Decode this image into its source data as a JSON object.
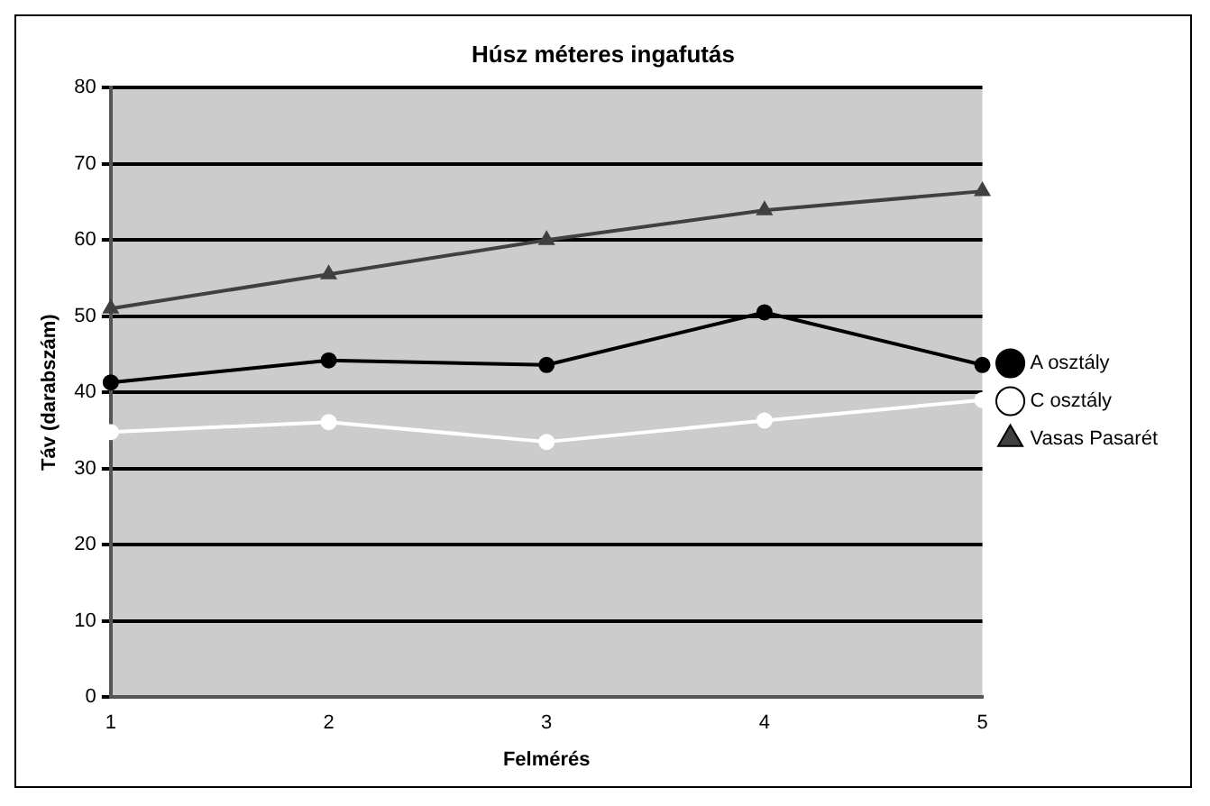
{
  "chart_data": {
    "type": "line",
    "title": "Húsz méteres ingafutás",
    "xlabel": "Felmérés",
    "ylabel": "Táv (darabszám)",
    "categories": [
      "1",
      "2",
      "3",
      "4",
      "5"
    ],
    "series": [
      {
        "name": "A osztály",
        "color": "#000000",
        "marker": "circle",
        "values": [
          41.3,
          44.2,
          43.6,
          50.5,
          43.6
        ]
      },
      {
        "name": "C osztály",
        "color": "#ffffff",
        "marker": "circle",
        "values": [
          34.8,
          36.1,
          33.5,
          36.3,
          39.0
        ]
      },
      {
        "name": "Vasas Pasarét",
        "color": "#404040",
        "marker": "triangle",
        "values": [
          51.0,
          55.5,
          60.0,
          63.9,
          66.4
        ]
      }
    ],
    "ylim": [
      0,
      80
    ],
    "yticks": [
      0,
      10,
      20,
      30,
      40,
      50,
      60,
      70,
      80
    ],
    "grid": "y",
    "legend": "right",
    "line_style": "solid"
  }
}
